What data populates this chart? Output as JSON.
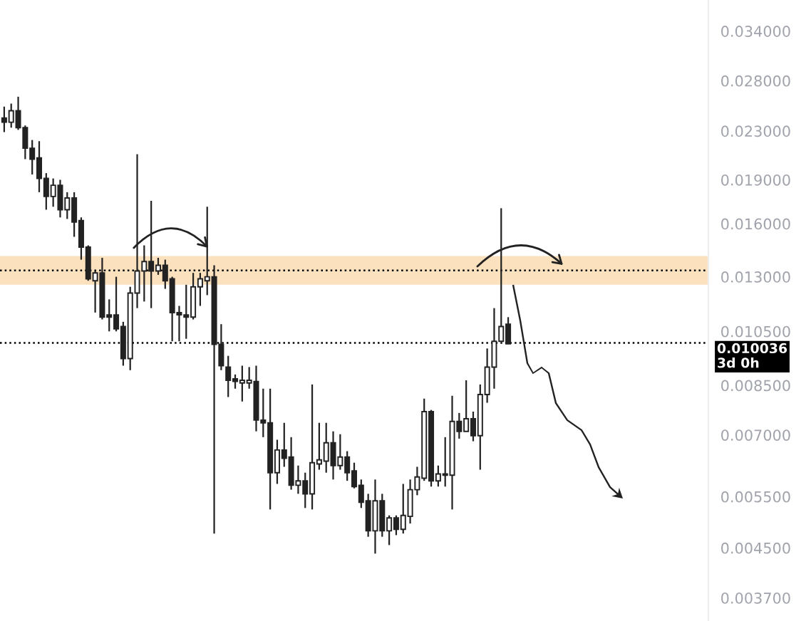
{
  "chart_data": {
    "type": "candlestick",
    "categories": [
      null,
      null,
      null,
      null,
      null,
      null,
      null,
      null,
      null,
      null,
      null,
      null,
      null,
      null,
      null,
      null,
      null,
      null,
      null,
      null,
      null,
      null,
      null,
      null,
      null,
      null,
      null,
      null,
      null,
      null,
      null,
      null,
      null,
      null,
      null,
      null,
      null,
      null,
      null,
      null,
      null,
      null,
      null,
      null,
      null,
      null,
      null,
      null,
      null,
      null,
      null,
      null,
      null,
      null,
      null,
      null,
      null,
      null,
      null,
      null,
      null,
      null,
      null,
      null,
      null,
      null,
      null,
      null,
      null,
      null,
      null,
      null,
      null,
      null,
      null,
      null,
      null,
      null,
      null,
      null,
      null,
      null,
      null,
      null,
      null,
      null,
      null,
      null,
      null,
      null,
      null,
      null,
      null,
      null,
      null,
      null,
      null,
      null,
      null,
      null,
      null
    ],
    "ohlc": [
      [
        0.0242,
        0.0253,
        0.0229,
        0.0238
      ],
      [
        0.0238,
        0.0256,
        0.0233,
        0.0249
      ],
      [
        0.0249,
        0.0263,
        0.0231,
        0.0233
      ],
      [
        0.0233,
        0.0235,
        0.0206,
        0.0215
      ],
      [
        0.0215,
        0.0222,
        0.0194,
        0.0206
      ],
      [
        0.0207,
        0.0221,
        0.0181,
        0.0191
      ],
      [
        0.0191,
        0.0195,
        0.0169,
        0.0178
      ],
      [
        0.0178,
        0.0191,
        0.0171,
        0.0186
      ],
      [
        0.0186,
        0.019,
        0.0164,
        0.0169
      ],
      [
        0.0169,
        0.0181,
        0.0163,
        0.0177
      ],
      [
        0.0177,
        0.0181,
        0.0152,
        0.0161
      ],
      [
        0.0162,
        0.0164,
        0.0139,
        0.0146
      ],
      [
        0.0146,
        0.0147,
        0.0128,
        0.0129
      ],
      [
        0.0128,
        0.0133,
        0.0113,
        0.0132
      ],
      [
        0.0132,
        0.014,
        0.011,
        0.0111
      ],
      [
        0.0112,
        0.0119,
        0.0105,
        0.0111
      ],
      [
        0.0112,
        0.013,
        0.0105,
        0.0106
      ],
      [
        0.0107,
        0.0109,
        0.00918,
        0.00944
      ],
      [
        0.00944,
        0.0125,
        0.00902,
        0.0122
      ],
      [
        0.0122,
        0.021,
        0.0115,
        0.0133
      ],
      [
        0.0133,
        0.0147,
        0.0118,
        0.0138
      ],
      [
        0.0138,
        0.0175,
        0.0115,
        0.0133
      ],
      [
        0.0133,
        0.014,
        0.0131,
        0.0136
      ],
      [
        0.0136,
        0.0139,
        0.0124,
        0.0128
      ],
      [
        0.0129,
        0.013,
        0.0101,
        0.0113
      ],
      [
        0.0113,
        0.0116,
        0.0101,
        0.0112
      ],
      [
        0.0112,
        0.0126,
        0.0102,
        0.0111
      ],
      [
        0.0111,
        0.0132,
        0.011,
        0.0125
      ],
      [
        0.0125,
        0.0132,
        0.0116,
        0.0129
      ],
      [
        0.0128,
        0.0171,
        0.0121,
        0.013
      ],
      [
        0.013,
        0.0136,
        0.00476,
        0.00998
      ],
      [
        0.00998,
        0.0108,
        0.00902,
        0.00918
      ],
      [
        0.00913,
        0.00954,
        0.00812,
        0.00867
      ],
      [
        0.00872,
        0.00887,
        0.00839,
        0.00863
      ],
      [
        0.00858,
        0.00918,
        0.00798,
        0.00867
      ],
      [
        0.00858,
        0.00913,
        0.00839,
        0.00867
      ],
      [
        0.00863,
        0.00918,
        0.0071,
        0.00742
      ],
      [
        0.00742,
        0.00839,
        0.00694,
        0.00734
      ],
      [
        0.00734,
        0.00839,
        0.00523,
        0.00604
      ],
      [
        0.00604,
        0.00687,
        0.00578,
        0.0066
      ],
      [
        0.0066,
        0.00734,
        0.00618,
        0.00639
      ],
      [
        0.00642,
        0.00694,
        0.00565,
        0.00575
      ],
      [
        0.00575,
        0.00621,
        0.00556,
        0.00585
      ],
      [
        0.00585,
        0.00604,
        0.00526,
        0.00556
      ],
      [
        0.00556,
        0.00853,
        0.00523,
        0.00628
      ],
      [
        0.00625,
        0.00734,
        0.00611,
        0.00635
      ],
      [
        0.00632,
        0.00734,
        0.00604,
        0.00679
      ],
      [
        0.00679,
        0.0071,
        0.00588,
        0.00621
      ],
      [
        0.00621,
        0.00702,
        0.00611,
        0.00642
      ],
      [
        0.00642,
        0.00657,
        0.00585,
        0.00604
      ],
      [
        0.00608,
        0.00628,
        0.00568,
        0.00572
      ],
      [
        0.00575,
        0.00588,
        0.00526,
        0.00538
      ],
      [
        0.00541,
        0.00556,
        0.0047,
        0.00481
      ],
      [
        0.00481,
        0.00588,
        0.0044,
        0.00541
      ],
      [
        0.00541,
        0.00556,
        0.0047,
        0.00481
      ],
      [
        0.00481,
        0.00511,
        0.00455,
        0.00506
      ],
      [
        0.00506,
        0.00511,
        0.00473,
        0.00484
      ],
      [
        0.00484,
        0.00578,
        0.00476,
        0.00511
      ],
      [
        0.00509,
        0.00588,
        0.00495,
        0.00565
      ],
      [
        0.00565,
        0.00618,
        0.00553,
        0.00594
      ],
      [
        0.00591,
        0.00807,
        0.00585,
        0.00767
      ],
      [
        0.00767,
        0.00772,
        0.00572,
        0.00585
      ],
      [
        0.00585,
        0.00621,
        0.00572,
        0.00601
      ],
      [
        0.00598,
        0.00694,
        0.00572,
        0.00601
      ],
      [
        0.00598,
        0.00816,
        0.00523,
        0.00738
      ],
      [
        0.00738,
        0.00763,
        0.0069,
        0.0071
      ],
      [
        0.0071,
        0.00867,
        0.0071,
        0.00746
      ],
      [
        0.00746,
        0.00767,
        0.00683,
        0.00698
      ],
      [
        0.00698,
        0.00853,
        0.00611,
        0.0082
      ],
      [
        0.0082,
        0.00982,
        0.00794,
        0.00913
      ],
      [
        0.00913,
        0.0115,
        0.00839,
        0.0101
      ],
      [
        0.0101,
        0.017,
        0.0101,
        0.0107
      ],
      [
        0.0108,
        0.0111,
        0.01,
        0.01
      ],
      null,
      null,
      null,
      null,
      null,
      null,
      null,
      null,
      null,
      null,
      null,
      null,
      null,
      null,
      null,
      null,
      null,
      null,
      null,
      null,
      null,
      null,
      null,
      null,
      null,
      null,
      null,
      null
    ],
    "log": true,
    "ylim": [
      0.00338,
      0.0384
    ],
    "yticks": [
      {
        "value": 0.034,
        "label": "0.034000"
      },
      {
        "value": 0.028,
        "label": "0.028000"
      },
      {
        "value": 0.023,
        "label": "0.023000"
      },
      {
        "value": 0.019,
        "label": "0.019000"
      },
      {
        "value": 0.016,
        "label": "0.016000"
      },
      {
        "value": 0.013,
        "label": "0.013000"
      },
      {
        "value": 0.0105,
        "label": "0.010500"
      },
      {
        "value": 0.0085,
        "label": "0.008500"
      },
      {
        "value": 0.007,
        "label": "0.007000"
      },
      {
        "value": 0.0055,
        "label": "0.005500"
      },
      {
        "value": 0.0045,
        "label": "0.004500"
      },
      {
        "value": 0.0037,
        "label": "0.003700"
      }
    ],
    "tick_labels": "y",
    "bands": [
      {
        "axis": "y",
        "from": 0.0126,
        "to": 0.0141,
        "color": "#fbe1bd"
      }
    ],
    "ref_lines": [
      {
        "axis": "y",
        "value": 0.01333,
        "line_style": "dotted",
        "color": "#000000"
      },
      {
        "axis": "y",
        "value": 0.010036,
        "label": "0.010036\n3d 0h",
        "line_style": "dotted",
        "color": "#000000"
      }
    ]
  }
}
